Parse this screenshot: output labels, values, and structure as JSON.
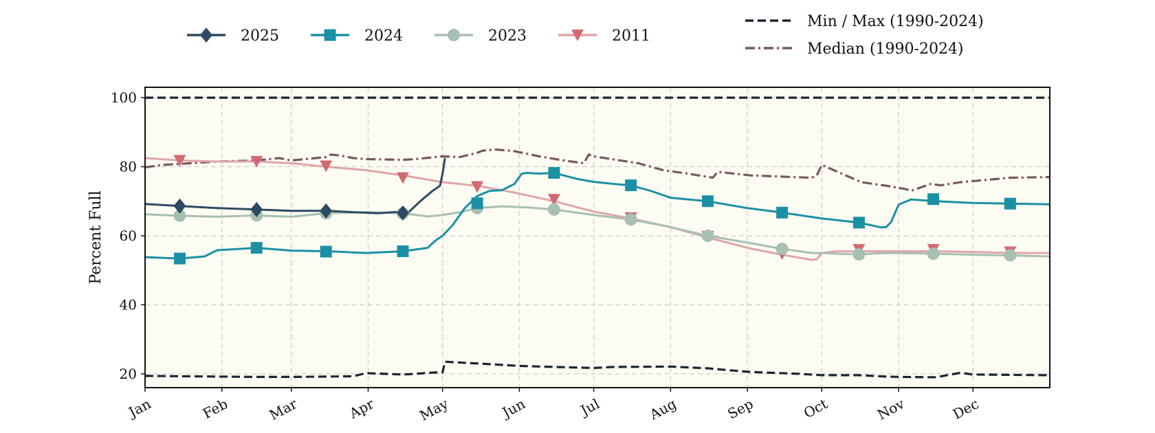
{
  "chart_data": {
    "type": "line",
    "ylabel": "Percent Full",
    "xlabel": "",
    "ylim": [
      16,
      103
    ],
    "yticks": [
      20,
      40,
      60,
      80,
      100
    ],
    "x_unit": "day_of_year",
    "xlim": [
      1,
      366
    ],
    "month_ticks": [
      {
        "label": "Jan",
        "day": 1
      },
      {
        "label": "Feb",
        "day": 32
      },
      {
        "label": "Mar",
        "day": 60
      },
      {
        "label": "Apr",
        "day": 91
      },
      {
        "label": "May",
        "day": 121
      },
      {
        "label": "Jun",
        "day": 152
      },
      {
        "label": "Jul",
        "day": 182
      },
      {
        "label": "Aug",
        "day": 213
      },
      {
        "label": "Sep",
        "day": 244
      },
      {
        "label": "Oct",
        "day": 274
      },
      {
        "label": "Nov",
        "day": 305
      },
      {
        "label": "Dec",
        "day": 335
      }
    ],
    "grid": true,
    "legend_placement": "top",
    "plot_background": "#fcfcf3",
    "series": [
      {
        "name": "2025",
        "color": "#2e4a62",
        "marker": "diamond",
        "style": "solid",
        "x": [
          1,
          15,
          30,
          46,
          60,
          75,
          85,
          95,
          105,
          107,
          112,
          117,
          120,
          121,
          122
        ],
        "y": [
          69.2,
          68.6,
          68.0,
          67.6,
          67.2,
          67.2,
          66.8,
          66.5,
          67.0,
          66.6,
          70.0,
          73.0,
          74.5,
          78.0,
          82.5
        ],
        "marker_x": [
          15,
          46,
          74,
          105
        ],
        "marker_y": [
          68.6,
          67.6,
          67.2,
          66.6
        ]
      },
      {
        "name": "2024",
        "color": "#1b90a4",
        "marker": "square",
        "style": "solid",
        "x": [
          1,
          15,
          25,
          30,
          46,
          60,
          75,
          90,
          105,
          115,
          118,
          121,
          125,
          130,
          135,
          140,
          145,
          150,
          153,
          155,
          160,
          166,
          175,
          182,
          190,
          197,
          205,
          213,
          228,
          244,
          258,
          274,
          289,
          298,
          300,
          302,
          305,
          310,
          320,
          335,
          350,
          366
        ],
        "y": [
          53.8,
          53.4,
          54.0,
          55.8,
          56.5,
          55.7,
          55.5,
          55.0,
          55.5,
          56.5,
          58.5,
          60.0,
          63.0,
          68.0,
          71.5,
          73.0,
          73.2,
          75.0,
          78.0,
          78.2,
          78.0,
          78.2,
          76.5,
          75.6,
          75.0,
          74.6,
          73.0,
          71.0,
          70.0,
          68.0,
          66.7,
          65.0,
          63.8,
          62.4,
          62.5,
          64.0,
          69.0,
          70.5,
          70.0,
          69.5,
          69.3,
          69.1
        ],
        "marker_x": [
          15,
          46,
          74,
          105,
          135,
          166,
          197,
          228,
          258,
          289,
          319,
          350
        ],
        "marker_y": [
          53.4,
          56.5,
          55.4,
          55.5,
          69.4,
          78.2,
          74.6,
          70.0,
          66.7,
          63.8,
          70.6,
          69.3
        ]
      },
      {
        "name": "2023",
        "color": "#a8bfb3",
        "marker": "circle",
        "style": "solid",
        "x": [
          1,
          15,
          30,
          46,
          60,
          74,
          90,
          105,
          115,
          121,
          128,
          135,
          145,
          155,
          166,
          182,
          197,
          213,
          228,
          244,
          258,
          270,
          274,
          280,
          289,
          300,
          305,
          319,
          335,
          350,
          366
        ],
        "y": [
          66.2,
          65.8,
          65.5,
          65.9,
          65.5,
          66.5,
          66.8,
          66.5,
          65.6,
          66.0,
          66.8,
          68.0,
          68.5,
          68.2,
          67.6,
          66.0,
          64.7,
          62.5,
          60.0,
          58.0,
          56.2,
          55.0,
          55.0,
          54.8,
          54.6,
          55.0,
          55.0,
          54.8,
          54.5,
          54.3,
          54.0
        ],
        "marker_x": [
          15,
          46,
          74,
          105,
          135,
          166,
          197,
          228,
          258,
          289,
          319,
          350
        ],
        "marker_y": [
          65.8,
          65.9,
          66.5,
          66.5,
          68.0,
          67.6,
          64.7,
          60.0,
          56.2,
          54.6,
          54.8,
          54.3
        ]
      },
      {
        "name": "2011",
        "color": "#d26a72",
        "line_color": "#e0a5a4",
        "marker": "triangle-down",
        "style": "solid",
        "x": [
          1,
          15,
          30,
          46,
          60,
          74,
          90,
          105,
          121,
          135,
          150,
          166,
          182,
          197,
          213,
          228,
          244,
          258,
          270,
          272,
          274,
          280,
          289,
          305,
          319,
          335,
          350,
          366
        ],
        "y": [
          82.5,
          81.8,
          81.5,
          81.5,
          81.0,
          80.0,
          79.0,
          77.5,
          75.5,
          74.5,
          72.5,
          70.0,
          67.0,
          65.0,
          62.5,
          59.5,
          56.5,
          54.5,
          53.0,
          53.2,
          55.0,
          55.5,
          55.5,
          55.5,
          55.5,
          55.3,
          55.0,
          55.0
        ],
        "marker_x": [
          15,
          46,
          74,
          105,
          135,
          166,
          197,
          228,
          258,
          289,
          319,
          350
        ],
        "marker_y": [
          81.8,
          81.5,
          80.2,
          76.8,
          74.2,
          70.5,
          65.2,
          59.8,
          54.8,
          56.0,
          56.0,
          55.3
        ]
      },
      {
        "name": "Min / Max (1990-2024)",
        "color": "#1a2533",
        "style": "dashed",
        "lines": [
          {
            "x": [
              1,
              366
            ],
            "y": [
              100,
              100
            ]
          },
          {
            "x": [
              1,
              15,
              30,
              46,
              60,
              74,
              85,
              90,
              105,
              110,
              118,
              121,
              122,
              135,
              152,
              166,
              182,
              190,
              213,
              228,
              244,
              250,
              265,
              274,
              289,
              300,
              305,
              320,
              330,
              335,
              350,
              366
            ],
            "y": [
              19.4,
              19.3,
              19.2,
              19.1,
              19.1,
              19.2,
              19.3,
              20.2,
              19.8,
              20.0,
              20.4,
              20.4,
              23.5,
              23.0,
              22.3,
              22.0,
              21.7,
              22.0,
              22.1,
              21.6,
              20.6,
              20.4,
              20.0,
              19.6,
              19.6,
              19.2,
              19.1,
              19.0,
              20.3,
              19.8,
              19.7,
              19.6
            ]
          }
        ]
      },
      {
        "name": "Median (1990-2024)",
        "color": "#7a5660",
        "style": "dashdot",
        "x": [
          1,
          8,
          15,
          30,
          46,
          55,
          60,
          74,
          76,
          80,
          85,
          90,
          105,
          110,
          121,
          128,
          135,
          137,
          142,
          150,
          160,
          170,
          178,
          180,
          182,
          200,
          210,
          220,
          230,
          232,
          245,
          262,
          270,
          272,
          274,
          290,
          300,
          308,
          310,
          318,
          322,
          330,
          350,
          366
        ],
        "y": [
          79.8,
          80.5,
          80.8,
          81.5,
          81.8,
          82.5,
          81.8,
          82.8,
          83.5,
          83.2,
          82.5,
          82.2,
          82.0,
          82.2,
          83.0,
          82.8,
          84.0,
          84.6,
          85.0,
          84.5,
          83.0,
          81.8,
          81.0,
          83.5,
          83.0,
          81.0,
          79.0,
          78.0,
          76.8,
          78.5,
          77.5,
          77.0,
          76.8,
          77.5,
          80.5,
          75.5,
          74.5,
          73.5,
          73.0,
          75.0,
          74.6,
          75.5,
          76.8,
          77.0
        ]
      }
    ]
  }
}
